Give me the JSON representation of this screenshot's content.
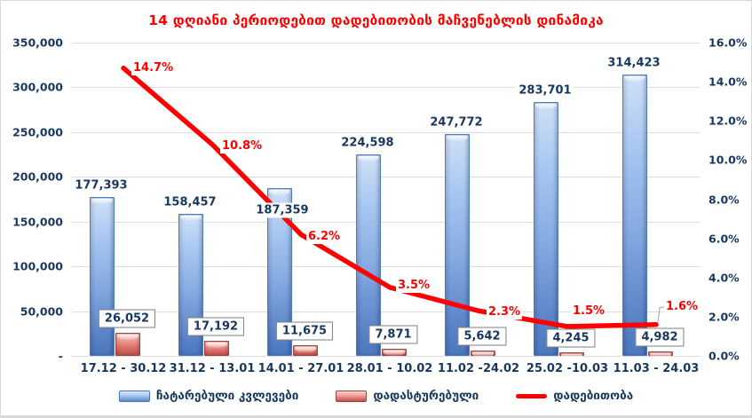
{
  "title": "14 დღიანი პერიოდებით დადებითობის მაჩვენებლის დინამიკა",
  "chart_data": {
    "type": "bar",
    "subtype": "bar+line combo, dual axis",
    "title": "14 დღიანი პერიოდებით დადებითობის მაჩვენებლის დინამიკა",
    "categories": [
      "17.12 - 30.12",
      "31.12 - 13.01",
      "14.01 - 27.01",
      "28.01 - 10.02",
      "11.02 -24.02",
      "25.02 -10.03",
      "11.03 - 24.03"
    ],
    "series": [
      {
        "name": "ჩატარებული კვლევები",
        "type": "bar",
        "axis": "left",
        "color": "#6f97d4",
        "values": [
          177393,
          158457,
          187359,
          224598,
          247772,
          283701,
          314423
        ],
        "labels": [
          "177,393",
          "158,457",
          "187,359",
          "224,598",
          "247,772",
          "283,701",
          "314,423"
        ]
      },
      {
        "name": "დადასტურებული",
        "type": "bar",
        "axis": "left",
        "color": "#c0504d",
        "values": [
          26052,
          17192,
          11675,
          7871,
          5642,
          4245,
          4982
        ],
        "labels": [
          "26,052",
          "17,192",
          "11,675",
          "7,871",
          "5,642",
          "4,245",
          "4,982"
        ]
      },
      {
        "name": "დადებითობა",
        "type": "line",
        "axis": "right",
        "color": "#ff0000",
        "values": [
          14.7,
          10.8,
          6.2,
          3.5,
          2.3,
          1.5,
          1.6
        ],
        "labels": [
          "14.7%",
          "10.8%",
          "6.2%",
          "3.5%",
          "2.3%",
          "1.5%",
          "1.6%"
        ]
      }
    ],
    "left_axis": {
      "min": 0,
      "max": 350000,
      "step": 50000,
      "ticks": [
        "350,000",
        "300,000",
        "250,000",
        "200,000",
        "150,000",
        "100,000",
        "50,000",
        "-"
      ]
    },
    "right_axis": {
      "min": 0,
      "max": 16,
      "step": 2,
      "ticks": [
        "16.0%",
        "14.0%",
        "12.0%",
        "10.0%",
        "8.0%",
        "6.0%",
        "4.0%",
        "2.0%",
        "0.0%"
      ]
    },
    "grid": true,
    "legend_position": "bottom"
  },
  "colors": {
    "title": "#ff0000",
    "axis_text": "#17375e",
    "gridline": "#dcdcdc",
    "bar_blue": "#6f97d4",
    "bar_red": "#c0504d",
    "line_red": "#ff0000",
    "label_box_border": "#7f7f7f"
  }
}
